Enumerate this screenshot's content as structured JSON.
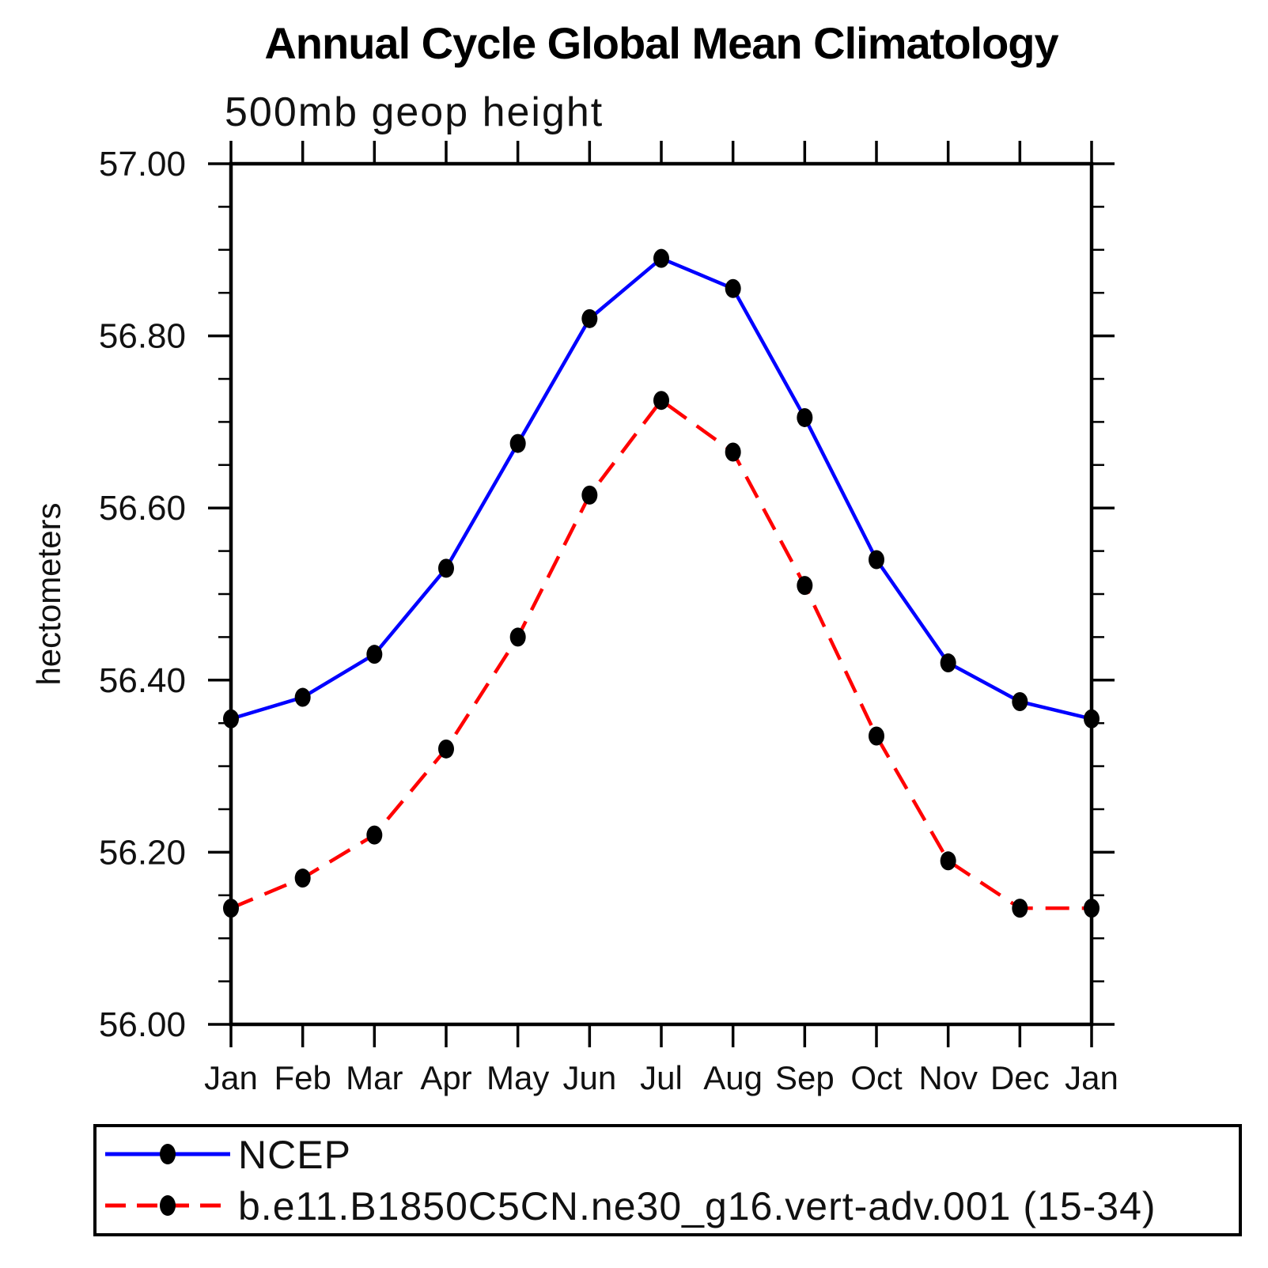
{
  "page": {
    "background": "#FFFFFF"
  },
  "chart_data": {
    "type": "line",
    "title": "Annual Cycle Global Mean Climatology",
    "subtitle": "500mb geop height",
    "ylabel": "hectometers",
    "xlabel": "",
    "categories": [
      "Jan",
      "Feb",
      "Mar",
      "Apr",
      "May",
      "Jun",
      "Jul",
      "Aug",
      "Sep",
      "Oct",
      "Nov",
      "Dec",
      "Jan"
    ],
    "ylim": [
      56.0,
      57.0
    ],
    "y_major_ticks": [
      56.0,
      56.2,
      56.4,
      56.6,
      56.8,
      57.0
    ],
    "y_tick_labels": [
      "56.00",
      "56.20",
      "56.40",
      "56.60",
      "56.80",
      "57.00"
    ],
    "y_minor_step": 0.05,
    "grid": false,
    "frame_color": "#000000",
    "legend_position": "bottom",
    "series": [
      {
        "name": "NCEP",
        "color": "#0000FF",
        "style": "solid",
        "marker": "filled-circle",
        "marker_color": "#000000",
        "values": [
          56.355,
          56.38,
          56.43,
          56.53,
          56.675,
          56.82,
          56.89,
          56.855,
          56.705,
          56.54,
          56.42,
          56.375,
          56.355
        ]
      },
      {
        "name": "b.e11.B1850C5CN.ne30_g16.vert-adv.001 (15-34)",
        "color": "#FF0000",
        "style": "dashed",
        "marker": "filled-circle",
        "marker_color": "#000000",
        "values": [
          56.135,
          56.17,
          56.22,
          56.32,
          56.45,
          56.615,
          56.725,
          56.665,
          56.51,
          56.335,
          56.19,
          56.135,
          56.135
        ]
      }
    ]
  }
}
